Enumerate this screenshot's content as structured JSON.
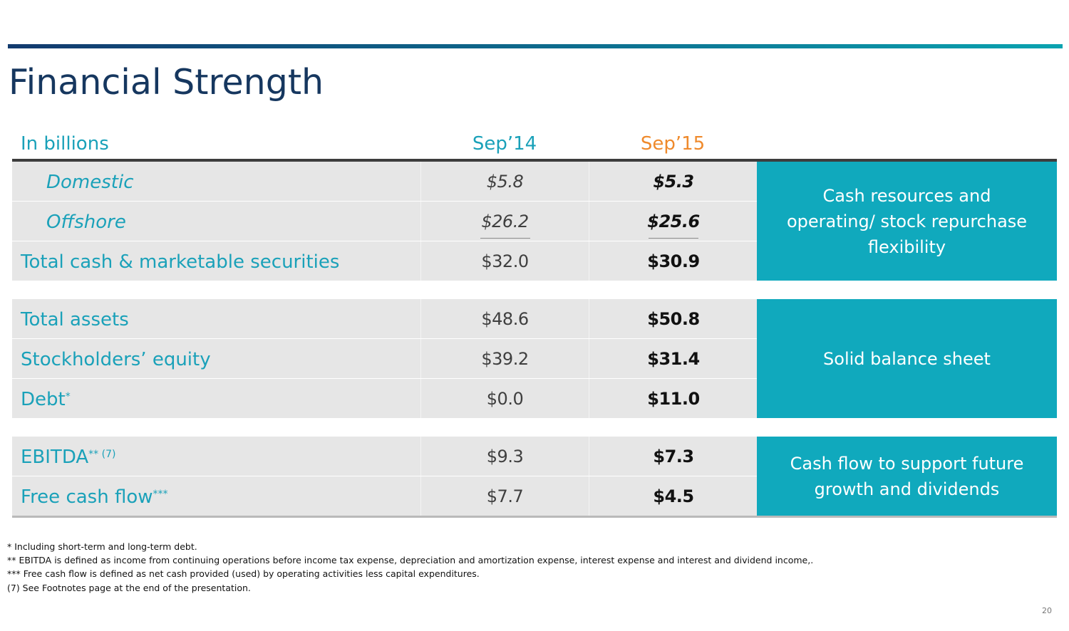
{
  "title": "Financial Strength",
  "header": {
    "label": "In billions",
    "col_a": "Sep’14",
    "col_b": "Sep’15"
  },
  "rows": [
    {
      "label": "Domestic",
      "sup": "",
      "a": "$5.8",
      "b": "$5.3"
    },
    {
      "label": "Offshore",
      "sup": "",
      "a": "$26.2",
      "b": "$25.6"
    },
    {
      "label": "Total cash & marketable securities",
      "sup": "",
      "a": "$32.0",
      "b": "$30.9"
    },
    {
      "label": "Total assets",
      "sup": "",
      "a": "$48.6",
      "b": "$50.8"
    },
    {
      "label": "Stockholders’ equity",
      "sup": "",
      "a": "$39.2",
      "b": "$31.4"
    },
    {
      "label": "Debt",
      "sup": "*",
      "a": "$0.0",
      "b": "$11.0"
    },
    {
      "label": "EBITDA",
      "sup": "** (7)",
      "a": "$9.3",
      "b": "$7.3"
    },
    {
      "label": "Free cash flow",
      "sup": "***",
      "a": "$7.7",
      "b": "$4.5"
    }
  ],
  "callouts": [
    "Cash resources and operating/ stock repurchase flexibility",
    "Solid balance sheet",
    "Cash flow to support future growth and dividends"
  ],
  "footnotes": [
    "*  Including short-term and long-term debt.",
    "** EBITDA is defined as income from continuing operations before income tax expense, depreciation and amortization expense, interest expense and interest and dividend income,.",
    "*** Free cash flow is defined as net cash provided (used) by operating activities less capital expenditures.",
    "(7) See Footnotes page at the end of the presentation."
  ],
  "page_number": "20",
  "colors": {
    "teal": "#10a9bd",
    "label_teal": "#1aa1b9",
    "orange": "#ef8a2c",
    "navy": "#16375f"
  }
}
